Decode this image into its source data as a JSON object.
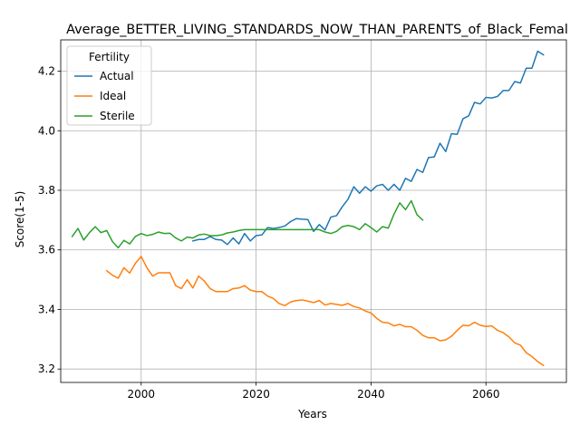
{
  "chart_data": {
    "type": "line",
    "title": "Average_BETTER_LIVING_STANDARDS_NOW_THAN_PARENTS_of_Black_Femal",
    "xlabel": "Years",
    "ylabel": "Score(1-5)",
    "xlim": [
      1986,
      2074
    ],
    "ylim": [
      3.155,
      4.305
    ],
    "xticks": [
      2000,
      2020,
      2040,
      2060
    ],
    "yticks": [
      3.2,
      3.4,
      3.6,
      3.8,
      4.0,
      4.2
    ],
    "ytick_labels": [
      "3.2",
      "3.4",
      "3.6",
      "3.8",
      "4.0",
      "4.2"
    ],
    "grid": true,
    "legend": {
      "title": "Fertility",
      "position": "top-left"
    },
    "series": [
      {
        "name": "Actual",
        "color": "#1f77b4",
        "x": [
          2009,
          2010,
          2011,
          2012,
          2013,
          2014,
          2015,
          2016,
          2017,
          2018,
          2019,
          2020,
          2021,
          2022,
          2023,
          2024,
          2025,
          2026,
          2027,
          2028,
          2029,
          2030,
          2031,
          2032,
          2033,
          2034,
          2035,
          2036,
          2037,
          2038,
          2039,
          2040,
          2041,
          2042,
          2043,
          2044,
          2045,
          2046,
          2047,
          2048,
          2049,
          2050,
          2051,
          2052,
          2053,
          2054,
          2055,
          2056,
          2057,
          2058,
          2059,
          2060,
          2061,
          2062,
          2063,
          2064,
          2065,
          2066,
          2067,
          2068,
          2069,
          2070
        ],
        "y": [
          3.63,
          3.635,
          3.635,
          3.645,
          3.635,
          3.633,
          3.618,
          3.64,
          3.62,
          3.655,
          3.63,
          3.648,
          3.65,
          3.675,
          3.672,
          3.675,
          3.68,
          3.695,
          3.705,
          3.703,
          3.702,
          3.662,
          3.685,
          3.667,
          3.71,
          3.715,
          3.745,
          3.77,
          3.812,
          3.79,
          3.812,
          3.797,
          3.815,
          3.82,
          3.8,
          3.82,
          3.8,
          3.84,
          3.83,
          3.87,
          3.86,
          3.91,
          3.912,
          3.958,
          3.93,
          3.99,
          3.988,
          4.04,
          4.05,
          4.095,
          4.09,
          4.112,
          4.11,
          4.115,
          4.135,
          4.135,
          4.165,
          4.16,
          4.21,
          4.21,
          4.267,
          4.255
        ]
      },
      {
        "name": "Ideal",
        "color": "#ff7f0e",
        "x": [
          1994,
          1995,
          1996,
          1997,
          1998,
          1999,
          2000,
          2001,
          2002,
          2003,
          2004,
          2005,
          2006,
          2007,
          2008,
          2009,
          2010,
          2011,
          2012,
          2013,
          2014,
          2015,
          2016,
          2017,
          2018,
          2019,
          2020,
          2021,
          2022,
          2023,
          2024,
          2025,
          2026,
          2027,
          2028,
          2029,
          2030,
          2031,
          2032,
          2033,
          2034,
          2035,
          2036,
          2037,
          2038,
          2039,
          2040,
          2041,
          2042,
          2043,
          2044,
          2045,
          2046,
          2047,
          2048,
          2049,
          2050,
          2051,
          2052,
          2053,
          2054,
          2055,
          2056,
          2057,
          2058,
          2059,
          2060,
          2061,
          2062,
          2063,
          2064,
          2065,
          2066,
          2067,
          2068,
          2069,
          2070
        ],
        "y": [
          3.53,
          3.515,
          3.505,
          3.54,
          3.522,
          3.555,
          3.578,
          3.54,
          3.512,
          3.523,
          3.523,
          3.523,
          3.48,
          3.47,
          3.5,
          3.472,
          3.512,
          3.495,
          3.47,
          3.46,
          3.46,
          3.46,
          3.47,
          3.472,
          3.48,
          3.465,
          3.46,
          3.46,
          3.445,
          3.437,
          3.42,
          3.413,
          3.425,
          3.43,
          3.432,
          3.428,
          3.423,
          3.43,
          3.415,
          3.42,
          3.417,
          3.414,
          3.42,
          3.41,
          3.405,
          3.395,
          3.388,
          3.37,
          3.357,
          3.355,
          3.345,
          3.35,
          3.342,
          3.342,
          3.33,
          3.313,
          3.305,
          3.305,
          3.295,
          3.298,
          3.31,
          3.33,
          3.347,
          3.345,
          3.357,
          3.347,
          3.343,
          3.345,
          3.33,
          3.322,
          3.308,
          3.288,
          3.28,
          3.255,
          3.242,
          3.225,
          3.212
        ]
      },
      {
        "name": "Sterile",
        "color": "#2ca02c",
        "x": [
          1988,
          1989,
          1990,
          1991,
          1992,
          1993,
          1994,
          1995,
          1996,
          1997,
          1998,
          1999,
          2000,
          2001,
          2002,
          2003,
          2004,
          2005,
          2006,
          2007,
          2008,
          2009,
          2010,
          2011,
          2012,
          2013,
          2014,
          2015,
          2016,
          2017,
          2018,
          2019,
          2020,
          2021,
          2022,
          2023,
          2024,
          2025,
          2026,
          2027,
          2028,
          2029,
          2030,
          2031,
          2032,
          2033,
          2034,
          2035,
          2036,
          2037,
          2038,
          2039,
          2040,
          2041,
          2042,
          2043,
          2044,
          2045,
          2046,
          2047,
          2048,
          2049
        ],
        "y": [
          3.645,
          3.672,
          3.633,
          3.658,
          3.678,
          3.658,
          3.665,
          3.628,
          3.607,
          3.632,
          3.62,
          3.645,
          3.655,
          3.648,
          3.652,
          3.66,
          3.655,
          3.656,
          3.64,
          3.63,
          3.643,
          3.64,
          3.65,
          3.653,
          3.648,
          3.648,
          3.65,
          3.657,
          3.66,
          3.665,
          3.668,
          3.668,
          3.668,
          3.668,
          3.668,
          3.668,
          3.668,
          3.668,
          3.668,
          3.668,
          3.668,
          3.668,
          3.668,
          3.668,
          3.66,
          3.655,
          3.662,
          3.678,
          3.682,
          3.678,
          3.668,
          3.688,
          3.675,
          3.66,
          3.678,
          3.673,
          3.72,
          3.758,
          3.735,
          3.765,
          3.718,
          3.7
        ]
      }
    ]
  }
}
